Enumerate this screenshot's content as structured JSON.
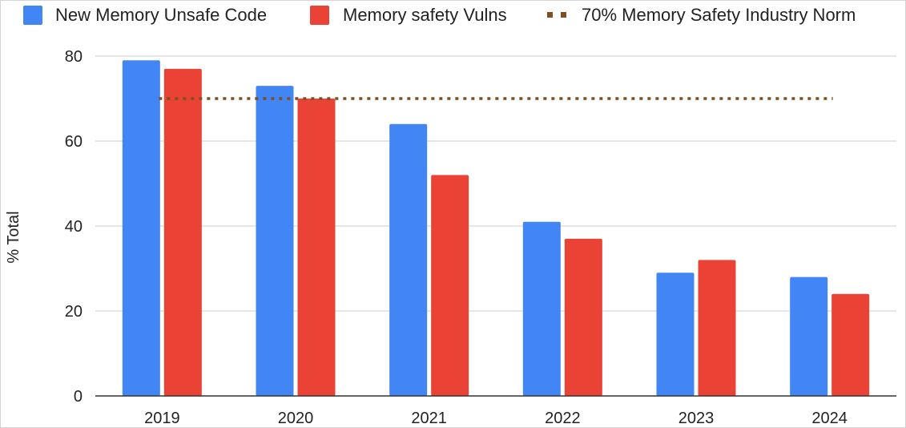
{
  "chart_data": {
    "type": "bar",
    "categories": [
      "2019",
      "2020",
      "2021",
      "2022",
      "2023",
      "2024"
    ],
    "series": [
      {
        "name": "New Memory Unsafe Code",
        "color": "#4285f4",
        "values": [
          79,
          73,
          64,
          41,
          29,
          28
        ]
      },
      {
        "name": "Memory safety Vulns",
        "color": "#ea4335",
        "values": [
          77,
          70,
          52,
          37,
          32,
          24
        ]
      }
    ],
    "reference_line": {
      "name": "70% Memory Safety Industry Norm",
      "value": 70,
      "color": "#7f4f1f",
      "style": "dotted"
    },
    "ylabel": "% Total",
    "xlabel": "",
    "ylim": [
      0,
      80
    ],
    "yticks": [
      0,
      20,
      40,
      60,
      80
    ],
    "grid": true,
    "legend_position": "top"
  }
}
